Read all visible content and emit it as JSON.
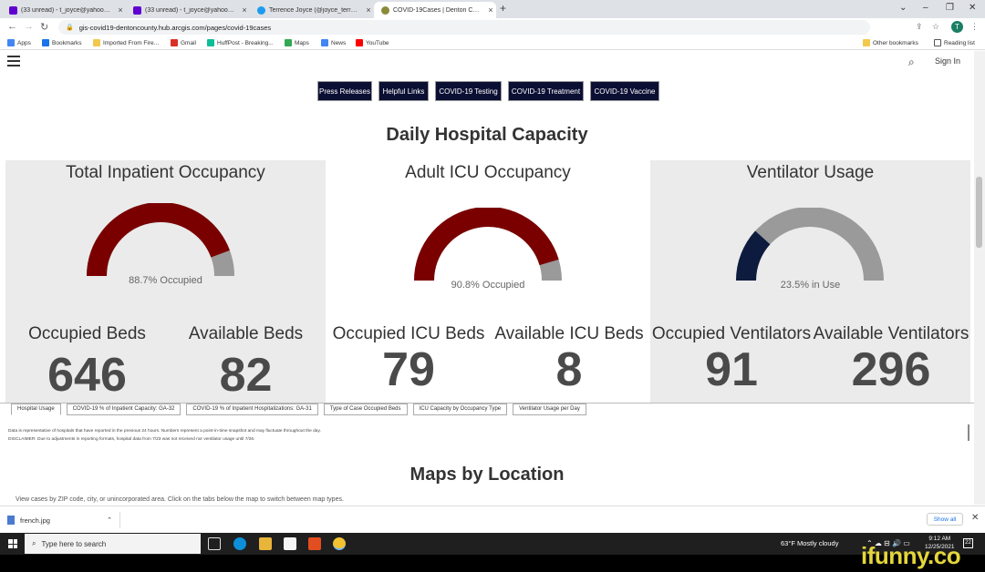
{
  "browser": {
    "tabs": [
      {
        "title": "(33 unread) - t_joyce@yahoo.com",
        "favicon_color": "#6001d2"
      },
      {
        "title": "(33 unread) - t_joyce@yahoo.com",
        "favicon_color": "#6001d2"
      },
      {
        "title": "Terrence Joyce (@joyce_terrence)",
        "favicon_color": "#1d9bf0"
      },
      {
        "title": "COVID-19Cases | Denton County",
        "favicon_color": "#8a8a3a"
      }
    ],
    "new_tab": "+",
    "url": "gis-covid19-dentoncounty.hub.arcgis.com/pages/covid-19cases",
    "profile_initial": "T",
    "bookmarks": [
      "Apps",
      "Bookmarks",
      "Imported From Fire...",
      "Gmail",
      "HuffPost - Breaking...",
      "Maps",
      "News",
      "YouTube"
    ],
    "other_bookmarks": "Other bookmarks",
    "reading_list": "Reading list"
  },
  "header": {
    "sign_in": "Sign In",
    "nav": [
      "Press Releases",
      "Helpful Links",
      "COVID-19 Testing",
      "COVID-19 Treatment",
      "COVID-19 Vaccine"
    ]
  },
  "section_title": "Daily Hospital Capacity",
  "panels": [
    {
      "title": "Total Inpatient Occupancy",
      "percent": 88.7,
      "caption": "88.7% Occupied",
      "fill_color": "#7a0000",
      "track_color": "#9a9a9a",
      "left_label": "Occupied Beds",
      "left_value": "646",
      "right_label": "Available Beds",
      "right_value": "82"
    },
    {
      "title": "Adult ICU Occupancy",
      "percent": 90.8,
      "caption": "90.8% Occupied",
      "fill_color": "#7a0000",
      "track_color": "#9a9a9a",
      "left_label": "Occupied ICU Beds",
      "left_value": "79",
      "right_label": "Available ICU Beds",
      "right_value": "8"
    },
    {
      "title": "Ventilator Usage",
      "percent": 23.5,
      "caption": "23.5% in Use",
      "fill_color": "#0d1b3e",
      "track_color": "#9a9a9a",
      "left_label": "Occupied Ventilators",
      "left_value": "91",
      "right_label": "Available Ventilators",
      "right_value": "296"
    }
  ],
  "subtabs": [
    "Hospital Usage",
    "COVID-19 % of Inpatient Capacity: GA-32",
    "COVID-19 % of Inpatient Hospitalizations: GA-31",
    "Type of Case Occupied Beds",
    "ICU Capacity by Occupancy Type",
    "Ventilator Usage per Day"
  ],
  "notes": {
    "line1": "Data is representative of hospitals that have reported in the previous 24 hours. Numbers represent a point-in-time snapshot and may fluctuate throughout the day.",
    "line2": "DISCLAIMER: Due to adjustments in reporting formats, hospital data from 7/23 was not received nor ventilator usage until 7/26."
  },
  "maps_title": "Maps by Location",
  "maps_text": "View cases by ZIP code, city, or unincorporated area. Click on the tabs below the map to switch between map types.",
  "downloads": {
    "file": "french.jpg",
    "show_all": "Show all"
  },
  "taskbar": {
    "search_placeholder": "Type here to search",
    "weather": "63°F  Mostly cloudy",
    "time": "9:12 AM",
    "date": "12/25/2021",
    "notifications": "22"
  },
  "watermark": "ifunny.co"
}
